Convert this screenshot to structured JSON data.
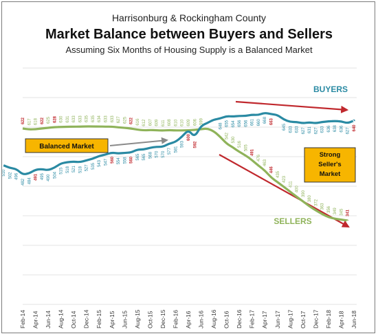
{
  "chart_data": {
    "type": "line",
    "title_line1": "Harrisonburg & Rockingham County",
    "title": "Market Balance between Buyers and Sellers",
    "subtitle": "Assuming Six Months of Housing Supply is a Balanced Market",
    "x_tick_labels": [
      "Feb-14",
      "Apr-14",
      "Jun-14",
      "Aug-14",
      "Oct-14",
      "Dec-14",
      "Feb-15",
      "Apr-15",
      "Jun-15",
      "Aug-15",
      "Oct-15",
      "Dec-15",
      "Feb-16",
      "Apr-16",
      "Jun-16",
      "Aug-16",
      "Oct-16",
      "Dec-16",
      "Feb-17",
      "Apr-17",
      "Jun-17",
      "Aug-17",
      "Oct-17",
      "Dec-17",
      "Feb-18",
      "Apr-18",
      "Jun-18"
    ],
    "series": [
      {
        "name": "BUYERS",
        "color": "#2a8aa3",
        "values": [
          510,
          502,
          496,
          482,
          484,
          491,
          495,
          490,
          504,
          515,
          518,
          521,
          518,
          527,
          535,
          543,
          547,
          560,
          554,
          558,
          560,
          565,
          565,
          568,
          570,
          570,
          577,
          581,
          593,
          600,
          592,
          617,
          628,
          645,
          648,
          655,
          654,
          656,
          656,
          661,
          660,
          668,
          663,
          660,
          645,
          633,
          633,
          627,
          631,
          627,
          633,
          636,
          638,
          636,
          627,
          640
        ],
        "label_strings": [
          "510",
          "502",
          "496",
          "482",
          "484",
          "491",
          "495",
          "490",
          "504",
          "515",
          "518",
          "521",
          "518",
          "527",
          "535",
          "543",
          "547",
          "560",
          "554",
          "558",
          "560",
          "565",
          "565",
          "568",
          "570",
          "570",
          "577",
          "581",
          "593",
          "600",
          "592",
          "",
          "",
          "",
          "648",
          "655",
          "654",
          "656",
          "656",
          "661",
          "660",
          "668",
          "663",
          "",
          "645",
          "633",
          "633",
          "627",
          "631",
          "627",
          "633",
          "636",
          "638",
          "636",
          "627",
          "640"
        ]
      },
      {
        "name": "SELLERS",
        "color": "#8fb35a",
        "values": [
          622,
          617,
          618,
          622,
          625,
          628,
          630,
          631,
          633,
          633,
          635,
          635,
          634,
          633,
          633,
          627,
          625,
          622,
          616,
          612,
          607,
          609,
          611,
          608,
          610,
          610,
          609,
          606,
          599,
          592,
          580,
          560,
          542,
          530,
          516,
          505,
          491,
          476,
          463,
          446,
          435,
          423,
          411,
          400,
          390,
          380,
          372,
          363,
          356,
          349,
          345,
          341
        ],
        "label_strings": [
          "622",
          "617",
          "618",
          "622",
          "625",
          "628",
          "630",
          "631",
          "633",
          "633",
          "635",
          "635",
          "634",
          "633",
          "633",
          "627",
          "625",
          "622",
          "616",
          "612",
          "607",
          "609",
          "611",
          "608",
          "610",
          "610",
          "609",
          "606",
          "599",
          "",
          "",
          "",
          "542",
          "530",
          "516",
          "505",
          "491",
          "476",
          "463",
          "446",
          "435",
          "423",
          "411",
          "400",
          "390",
          "380",
          "372",
          "363",
          "356",
          "349",
          "345",
          "341"
        ]
      }
    ],
    "red_label_strings": [
      "491",
      "560",
      "592",
      "600",
      "628",
      "622",
      "446",
      "663",
      "640",
      "341"
    ],
    "annotations": {
      "balanced": "Balanced Market",
      "strong_line1": "Strong",
      "strong_line2": "Seller's",
      "strong_line3": "Market"
    },
    "legend_placement": "inline labels near lines",
    "grid": true,
    "colors": {
      "buyers": "#2a8aa3",
      "sellers": "#8fb35a",
      "red": "#c0282d",
      "box_fill": "#f7b500",
      "arrow_grey": "#8a8a8a"
    }
  }
}
